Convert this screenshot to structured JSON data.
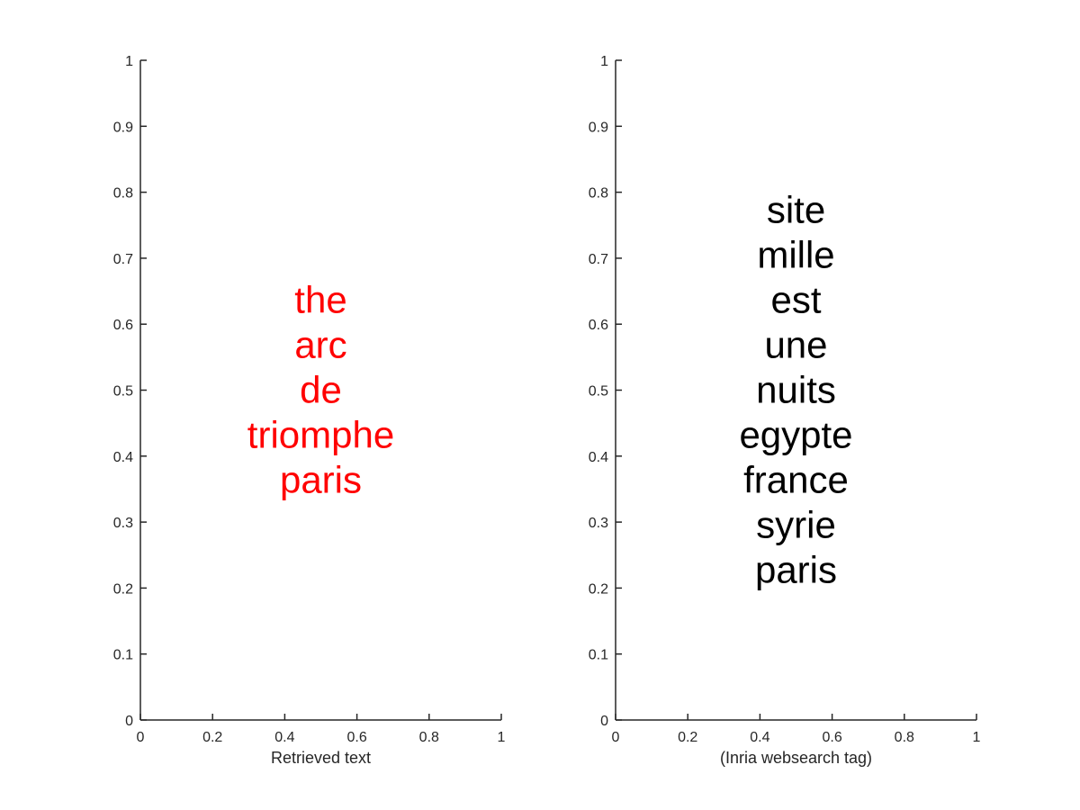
{
  "chart_data": [
    {
      "type": "text",
      "xlabel": "Retrieved text",
      "ylabel": "",
      "xlim": [
        0,
        1
      ],
      "ylim": [
        0,
        1
      ],
      "x_ticks": [
        "0",
        "0.2",
        "0.4",
        "0.6",
        "0.8",
        "1"
      ],
      "y_ticks": [
        "0",
        "0.1",
        "0.2",
        "0.3",
        "0.4",
        "0.5",
        "0.6",
        "0.7",
        "0.8",
        "0.9",
        "1"
      ],
      "text_color": "#ff0000",
      "words": [
        "the",
        "arc",
        "de",
        "triomphe",
        "paris"
      ],
      "text_center": [
        0.5,
        0.5
      ]
    },
    {
      "type": "text",
      "xlabel": "(Inria websearch tag)",
      "ylabel": "",
      "xlim": [
        0,
        1
      ],
      "ylim": [
        0,
        1
      ],
      "x_ticks": [
        "0",
        "0.2",
        "0.4",
        "0.6",
        "0.8",
        "1"
      ],
      "y_ticks": [
        "0",
        "0.1",
        "0.2",
        "0.3",
        "0.4",
        "0.5",
        "0.6",
        "0.7",
        "0.8",
        "0.9",
        "1"
      ],
      "text_color": "#000000",
      "words": [
        "site",
        "mille",
        "est",
        "une",
        "nuits",
        "egypte",
        "france",
        "syrie",
        "paris"
      ],
      "text_center": [
        0.5,
        0.5
      ]
    }
  ]
}
